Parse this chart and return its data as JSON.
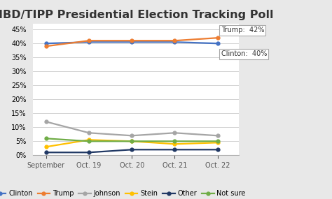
{
  "title": "IBD/TIPP Presidential Election Tracking Poll",
  "x_labels": [
    "September",
    "Oct. 19",
    "Oct. 20",
    "Oct. 21",
    "Oct. 22"
  ],
  "series": {
    "Clinton": [
      40.0,
      40.5,
      40.5,
      40.5,
      40.0
    ],
    "Trump": [
      39.0,
      41.0,
      41.0,
      41.0,
      42.0
    ],
    "Johnson": [
      12.0,
      8.0,
      7.0,
      8.0,
      7.0
    ],
    "Stein": [
      3.0,
      5.5,
      5.0,
      4.0,
      4.5
    ],
    "Other": [
      1.0,
      1.0,
      2.0,
      2.0,
      2.0
    ],
    "Not sure": [
      6.0,
      5.0,
      5.0,
      5.0,
      5.0
    ]
  },
  "colors": {
    "Clinton": "#4472C4",
    "Trump": "#ED7D31",
    "Johnson": "#A5A5A5",
    "Stein": "#FFC000",
    "Other": "#203864",
    "Not sure": "#70AD47"
  },
  "annotation_trump": "Trump:  42%",
  "annotation_clinton": "Clinton:  40%",
  "ylim": [
    0,
    47
  ],
  "ytick_vals": [
    0,
    5,
    10,
    15,
    20,
    25,
    30,
    35,
    40,
    45
  ],
  "ytick_labels": [
    "0%",
    "5%",
    "10%",
    "15%",
    "20%",
    "25%",
    "30%",
    "35%",
    "40%",
    "45%"
  ],
  "background_color": "#E8E8E8",
  "plot_bg_color": "#FFFFFF",
  "title_fontsize": 11.5,
  "legend_fontsize": 7,
  "tick_fontsize": 7,
  "line_width": 1.6,
  "marker": "o",
  "marker_size": 3.5
}
